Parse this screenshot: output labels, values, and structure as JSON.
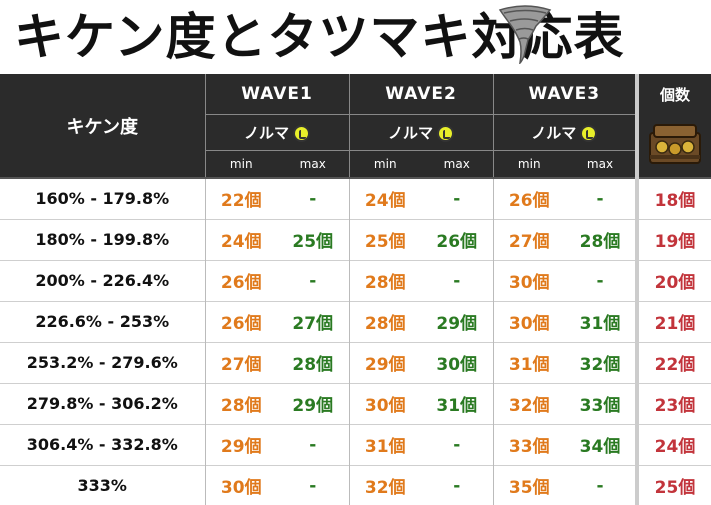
{
  "title": "キケン度とタツマキ対応表",
  "header": {
    "kiken_label": "キケン度",
    "waves": [
      "WAVE1",
      "WAVE2",
      "WAVE3"
    ],
    "norma_label": "ノルマ",
    "min_label": "min",
    "max_label": "max",
    "count_label": "個数"
  },
  "rows": [
    {
      "range": "160% - 179.8%",
      "w1min": "22個",
      "w1max": "-",
      "w2min": "24個",
      "w2max": "-",
      "w3min": "26個",
      "w3max": "-",
      "count": "18個"
    },
    {
      "range": "180% - 199.8%",
      "w1min": "24個",
      "w1max": "25個",
      "w2min": "25個",
      "w2max": "26個",
      "w3min": "27個",
      "w3max": "28個",
      "count": "19個"
    },
    {
      "range": "200% - 226.4%",
      "w1min": "26個",
      "w1max": "-",
      "w2min": "28個",
      "w2max": "-",
      "w3min": "30個",
      "w3max": "-",
      "count": "20個"
    },
    {
      "range": "226.6% - 253%",
      "w1min": "26個",
      "w1max": "27個",
      "w2min": "28個",
      "w2max": "29個",
      "w3min": "30個",
      "w3max": "31個",
      "count": "21個"
    },
    {
      "range": "253.2% - 279.6%",
      "w1min": "27個",
      "w1max": "28個",
      "w2min": "29個",
      "w2max": "30個",
      "w3min": "31個",
      "w3max": "32個",
      "count": "22個"
    },
    {
      "range": "279.8% - 306.2%",
      "w1min": "28個",
      "w1max": "29個",
      "w2min": "30個",
      "w2max": "31個",
      "w3min": "32個",
      "w3max": "33個",
      "count": "23個"
    },
    {
      "range": "306.4% - 332.8%",
      "w1min": "29個",
      "w1max": "-",
      "w2min": "31個",
      "w2max": "-",
      "w3min": "33個",
      "w3max": "34個",
      "count": "24個"
    },
    {
      "range": "333%",
      "w1min": "30個",
      "w1max": "-",
      "w2min": "32個",
      "w2max": "-",
      "w3min": "35個",
      "w3max": "-",
      "count": "25個"
    }
  ],
  "colors": {
    "min_color": "#e07a1c",
    "max_color": "#2a7a22",
    "count_color": "#c2343b",
    "header_bg": "#2b2b2b"
  },
  "icons": {
    "title_icon": "tornado-icon",
    "norma_icon": "golden-egg-icon",
    "count_icon": "golden-egg-container-icon"
  }
}
